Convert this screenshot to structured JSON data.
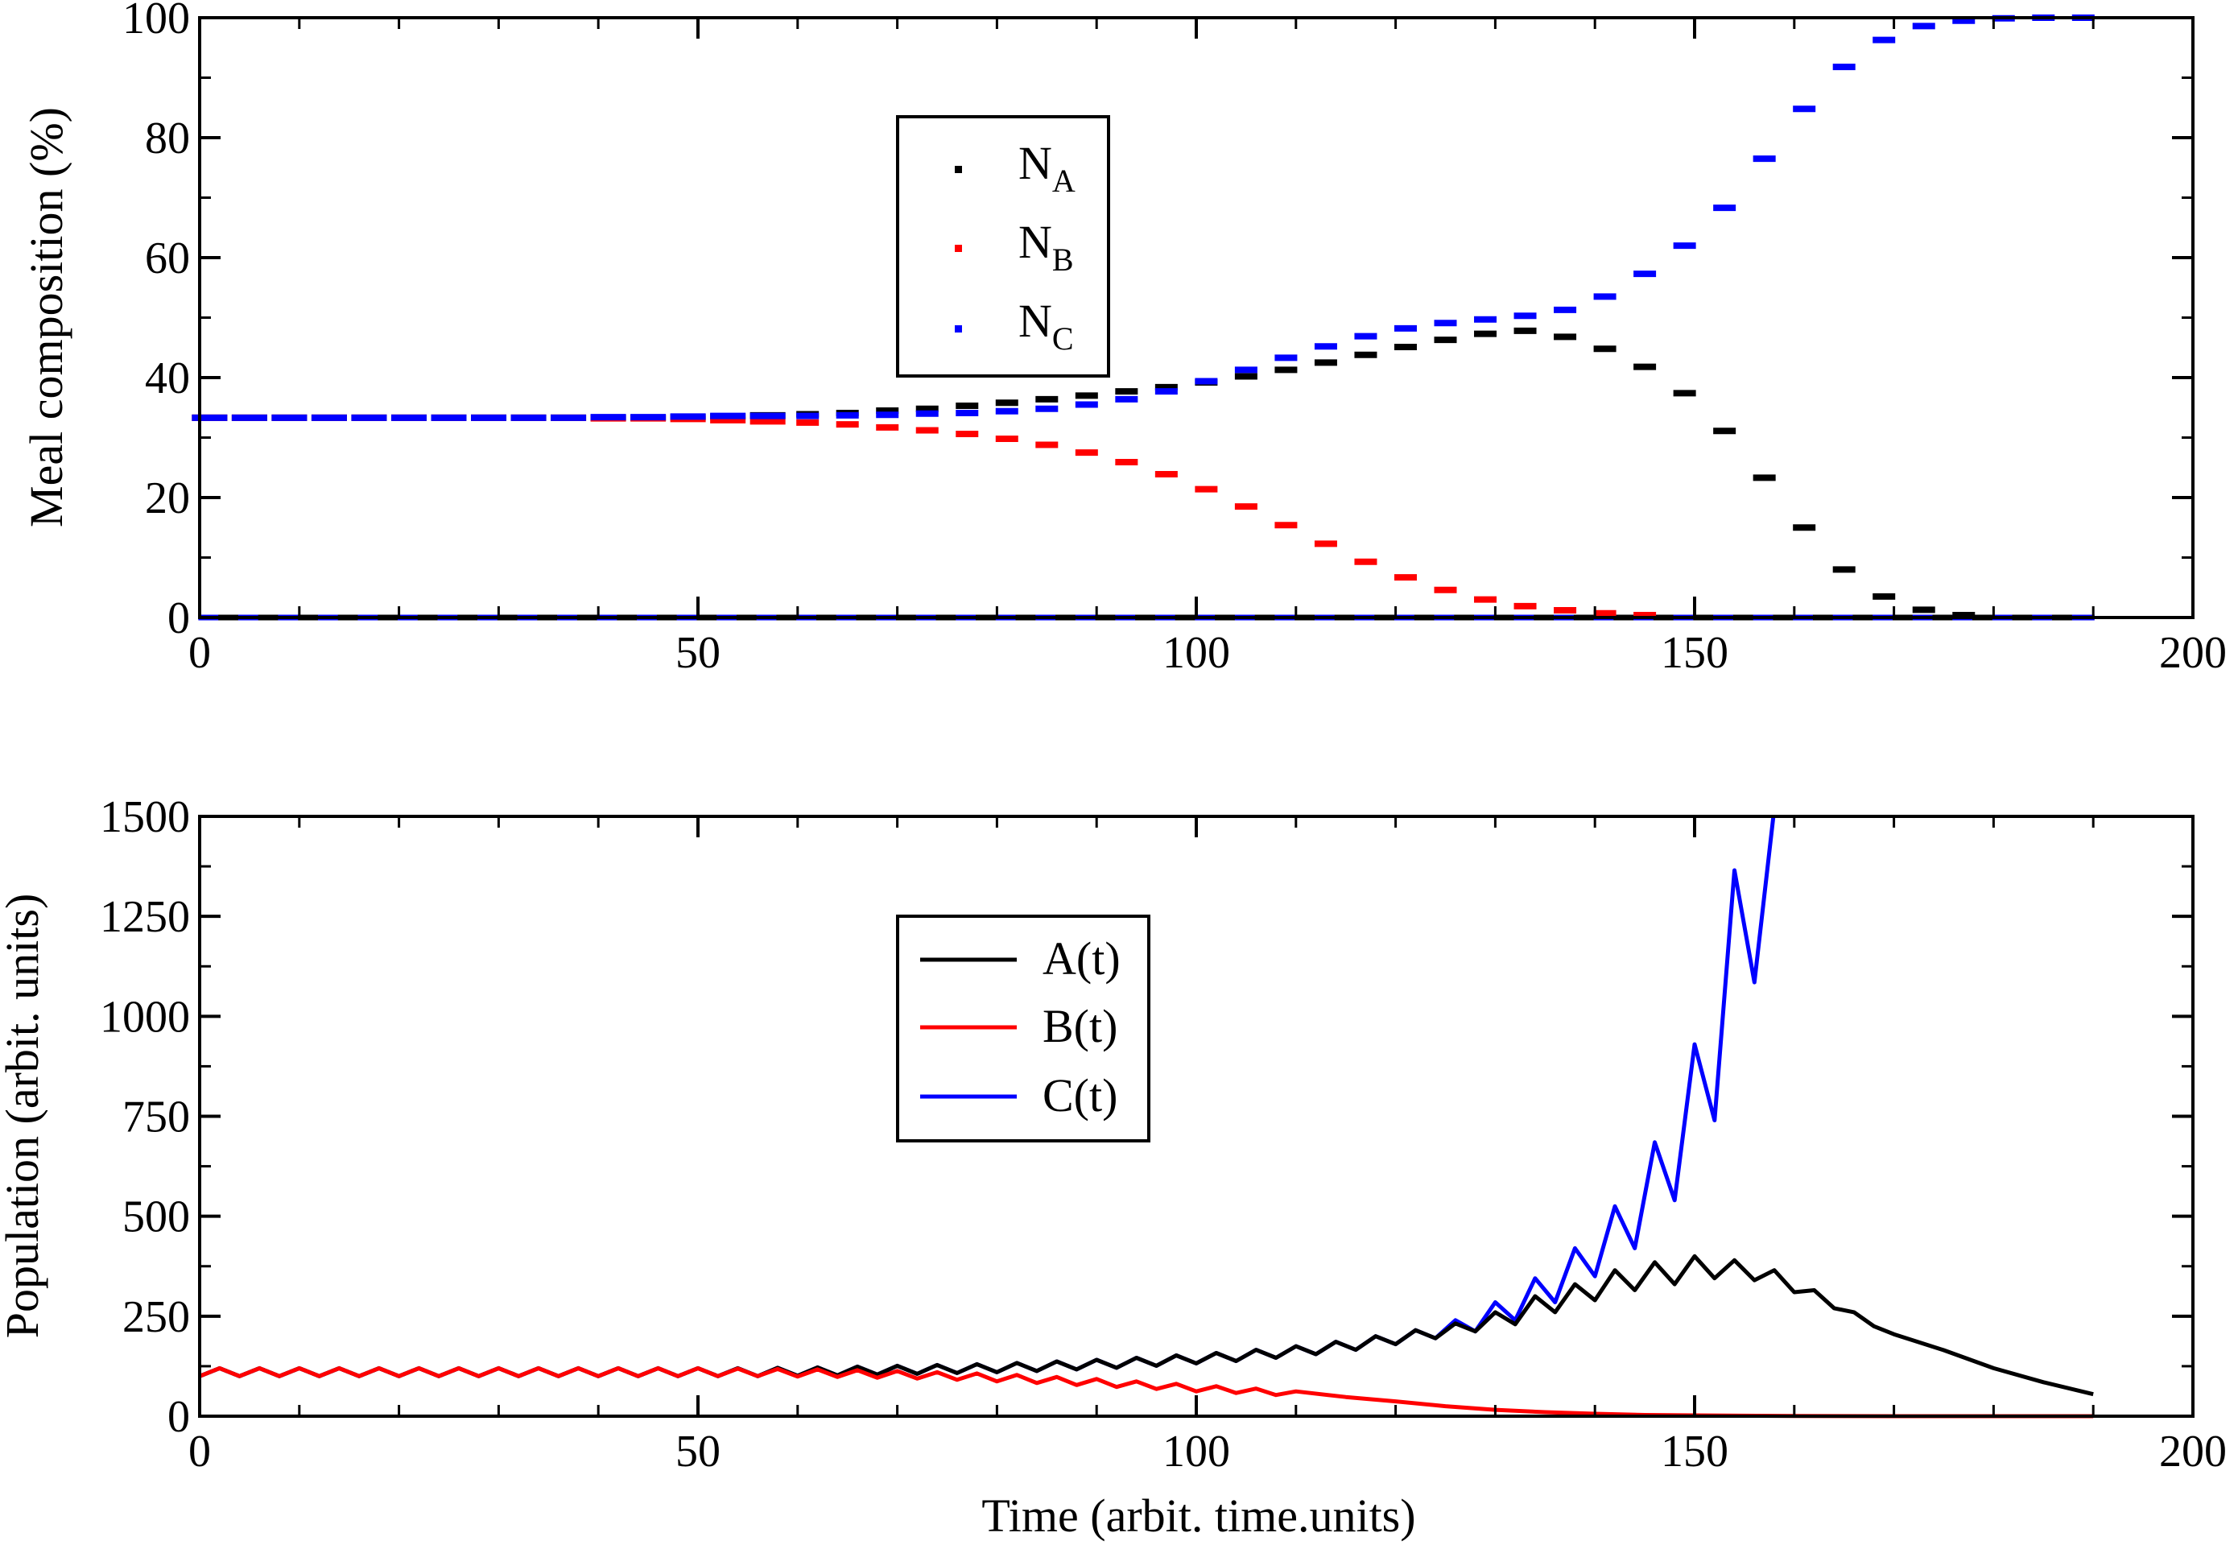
{
  "chart_data": [
    {
      "type": "scatter",
      "style": "dashes",
      "title": "",
      "xlabel": "",
      "ylabel": "Meal composition (%)",
      "xlim": [
        0,
        200
      ],
      "ylim": [
        0,
        100
      ],
      "xticks": [
        0,
        50,
        100,
        150,
        200
      ],
      "yticks": [
        0,
        20,
        40,
        60,
        80,
        100
      ],
      "x": [
        1,
        5,
        9,
        13,
        17,
        21,
        25,
        29,
        33,
        37,
        41,
        45,
        49,
        53,
        57,
        61,
        65,
        69,
        73,
        77,
        81,
        85,
        89,
        93,
        97,
        101,
        105,
        109,
        113,
        117,
        121,
        125,
        129,
        133,
        137,
        141,
        145,
        149,
        153,
        157,
        161,
        165,
        169,
        173,
        177,
        181,
        185,
        189
      ],
      "series": [
        {
          "name": "N",
          "subscript": "A",
          "color": "#000000",
          "values": [
            33.3,
            33.3,
            33.3,
            33.3,
            33.3,
            33.3,
            33.3,
            33.3,
            33.3,
            33.3,
            33.3,
            33.3,
            33.4,
            33.5,
            33.7,
            33.9,
            34.1,
            34.5,
            34.8,
            35.3,
            35.8,
            36.4,
            37.0,
            37.7,
            38.4,
            39.2,
            40.2,
            41.3,
            42.5,
            43.8,
            45.1,
            46.3,
            47.3,
            47.8,
            46.8,
            44.8,
            41.8,
            37.4,
            31.1,
            23.3,
            15.0,
            8.0,
            3.5,
            1.3,
            0.4,
            0.1,
            0.0,
            0.0
          ]
        },
        {
          "name": "N",
          "subscript": "B",
          "color": "#ff0000",
          "values": [
            33.3,
            33.3,
            33.3,
            33.3,
            33.3,
            33.3,
            33.3,
            33.3,
            33.3,
            33.3,
            33.2,
            33.2,
            33.1,
            32.9,
            32.7,
            32.5,
            32.2,
            31.7,
            31.2,
            30.6,
            29.8,
            28.8,
            27.5,
            25.9,
            23.9,
            21.4,
            18.5,
            15.4,
            12.3,
            9.3,
            6.7,
            4.6,
            3.0,
            1.9,
            1.2,
            0.7,
            0.4,
            0.2,
            0.1,
            0.05,
            0.0,
            0.0,
            0.0,
            0.0,
            0.0,
            0.0,
            0.0,
            0.0
          ]
        },
        {
          "name": "N",
          "subscript": "C",
          "color": "#0000ff",
          "values": [
            33.3,
            33.3,
            33.3,
            33.3,
            33.3,
            33.3,
            33.3,
            33.3,
            33.3,
            33.3,
            33.4,
            33.4,
            33.5,
            33.6,
            33.6,
            33.6,
            33.7,
            33.8,
            34.0,
            34.1,
            34.4,
            34.8,
            35.5,
            36.4,
            37.7,
            39.4,
            41.3,
            43.3,
            45.2,
            46.9,
            48.2,
            49.1,
            49.7,
            50.3,
            51.3,
            53.5,
            57.3,
            62.0,
            68.3,
            76.5,
            84.8,
            91.8,
            96.3,
            98.6,
            99.5,
            99.9,
            100.0,
            100.0
          ]
        }
      ],
      "baseline_dashes": {
        "x_start": 1,
        "x_end": 189,
        "value": 0
      }
    },
    {
      "type": "line",
      "title": "",
      "xlabel": "Time (arbit. time.units)",
      "ylabel": "Population (arbit. units)",
      "xlim": [
        0,
        200
      ],
      "ylim": [
        0,
        1500
      ],
      "xticks": [
        0,
        50,
        100,
        150,
        200
      ],
      "yticks": [
        0,
        250,
        500,
        750,
        1000,
        1250,
        1500
      ],
      "series": [
        {
          "name": "A(t)",
          "color": "#000000",
          "x": [
            0,
            2,
            4,
            6,
            8,
            10,
            12,
            14,
            16,
            18,
            20,
            22,
            24,
            26,
            28,
            30,
            32,
            34,
            36,
            38,
            40,
            42,
            44,
            46,
            48,
            50,
            52,
            54,
            56,
            58,
            60,
            62,
            64,
            66,
            68,
            70,
            72,
            74,
            76,
            78,
            80,
            82,
            84,
            86,
            88,
            90,
            92,
            94,
            96,
            98,
            100,
            102,
            104,
            106,
            108,
            110,
            112,
            114,
            116,
            118,
            120,
            122,
            124,
            126,
            128,
            130,
            132,
            134,
            136,
            138,
            140,
            142,
            144,
            146,
            148,
            150,
            152,
            154,
            156,
            158,
            160,
            162,
            164,
            166,
            168,
            170,
            175,
            180,
            185,
            190
          ],
          "y": [
            100,
            120,
            100,
            120,
            100,
            120,
            100,
            120,
            100,
            120,
            100,
            120,
            100,
            120,
            100,
            120,
            100,
            120,
            100,
            120,
            100,
            120,
            100,
            120,
            100,
            120,
            100,
            120,
            100,
            121,
            101,
            122,
            102,
            124,
            104,
            126,
            106,
            128,
            108,
            130,
            110,
            133,
            113,
            137,
            117,
            141,
            121,
            146,
            126,
            152,
            132,
            158,
            138,
            166,
            146,
            175,
            155,
            186,
            166,
            200,
            180,
            215,
            195,
            232,
            212,
            260,
            230,
            300,
            260,
            330,
            290,
            365,
            315,
            385,
            330,
            400,
            345,
            390,
            340,
            365,
            310,
            315,
            270,
            260,
            225,
            205,
            165,
            120,
            85,
            55
          ]
        },
        {
          "name": "B(t)",
          "color": "#ff0000",
          "x": [
            0,
            2,
            4,
            6,
            8,
            10,
            12,
            14,
            16,
            18,
            20,
            22,
            24,
            26,
            28,
            30,
            32,
            34,
            36,
            38,
            40,
            42,
            44,
            46,
            48,
            50,
            52,
            54,
            56,
            58,
            60,
            62,
            64,
            66,
            68,
            70,
            72,
            74,
            76,
            78,
            80,
            82,
            84,
            86,
            88,
            90,
            92,
            94,
            96,
            98,
            100,
            102,
            104,
            106,
            108,
            110,
            115,
            120,
            125,
            130,
            135,
            140,
            145,
            150,
            160,
            170,
            180,
            190
          ],
          "y": [
            100,
            120,
            100,
            120,
            100,
            120,
            100,
            120,
            100,
            120,
            100,
            120,
            100,
            120,
            100,
            120,
            100,
            120,
            100,
            120,
            100,
            120,
            100,
            120,
            100,
            120,
            100,
            119,
            100,
            118,
            99,
            117,
            98,
            115,
            96,
            113,
            94,
            110,
            91,
            107,
            87,
            103,
            83,
            98,
            78,
            93,
            73,
            87,
            68,
            81,
            62,
            75,
            58,
            69,
            53,
            62,
            48,
            37,
            25,
            16,
            10,
            6,
            3,
            2,
            0.5,
            0,
            0,
            0
          ]
        },
        {
          "name": "C(t)",
          "color": "#0000ff",
          "x": [
            0,
            2,
            4,
            6,
            8,
            10,
            12,
            14,
            16,
            18,
            20,
            22,
            24,
            26,
            28,
            30,
            32,
            34,
            36,
            38,
            40,
            42,
            44,
            46,
            48,
            50,
            52,
            54,
            56,
            58,
            60,
            62,
            64,
            66,
            68,
            70,
            72,
            74,
            76,
            78,
            80,
            82,
            84,
            86,
            88,
            90,
            92,
            94,
            96,
            98,
            100,
            102,
            104,
            106,
            108,
            110,
            112,
            114,
            116,
            118,
            120,
            122,
            124,
            126,
            128,
            130,
            132,
            134,
            136,
            138,
            140,
            142,
            144,
            146,
            148,
            150,
            152,
            154,
            156,
            158
          ],
          "y": [
            100,
            120,
            100,
            120,
            100,
            120,
            100,
            120,
            100,
            120,
            100,
            120,
            100,
            120,
            100,
            120,
            100,
            120,
            100,
            120,
            100,
            120,
            100,
            120,
            100,
            120,
            100,
            120,
            100,
            121,
            101,
            122,
            102,
            124,
            104,
            126,
            106,
            128,
            108,
            130,
            110,
            133,
            113,
            137,
            117,
            141,
            121,
            146,
            126,
            152,
            132,
            158,
            138,
            166,
            146,
            175,
            155,
            186,
            166,
            200,
            180,
            215,
            195,
            240,
            212,
            285,
            240,
            345,
            285,
            420,
            350,
            525,
            420,
            685,
            540,
            930,
            740,
            1365,
            1085,
            1520
          ]
        }
      ]
    }
  ]
}
